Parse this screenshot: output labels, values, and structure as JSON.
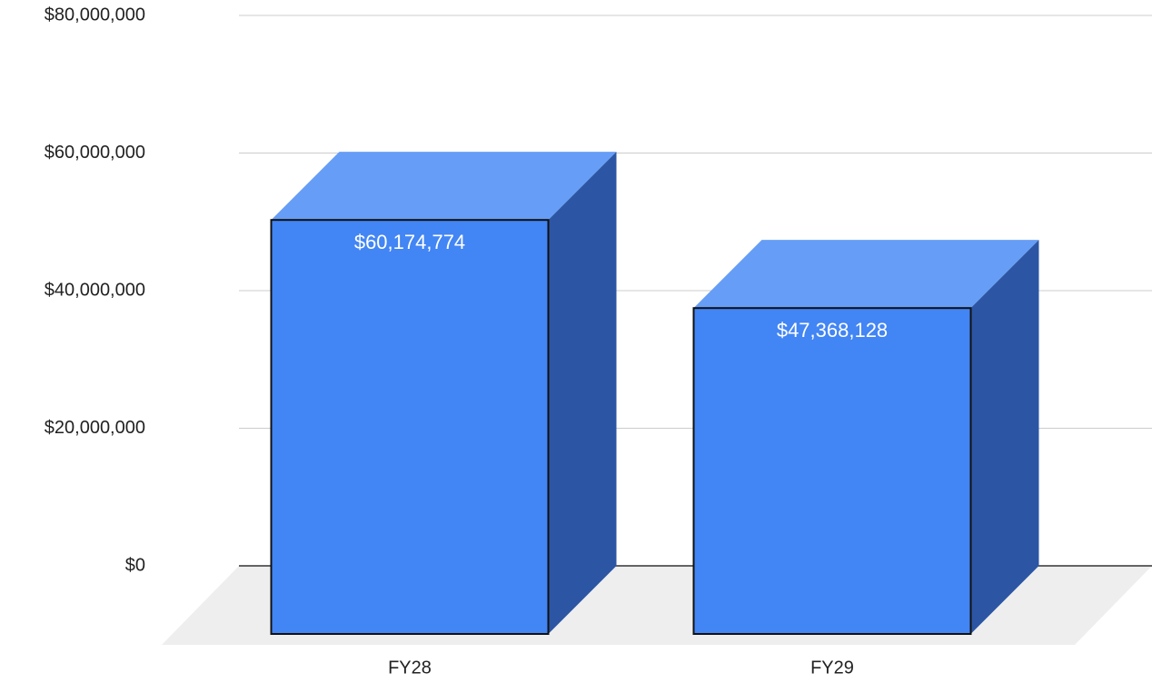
{
  "chart_data": {
    "type": "bar3d",
    "categories": [
      "FY28",
      "FY29"
    ],
    "values": [
      60174774,
      47368128
    ],
    "value_labels": [
      "$60,174,774",
      "$47,368,128"
    ],
    "color": "#4285f4",
    "ylim": [
      0,
      80000000
    ],
    "yticks": [
      {
        "value": 0,
        "label": "$0"
      },
      {
        "value": 20000000,
        "label": "$20,000,000"
      },
      {
        "value": 40000000,
        "label": "$40,000,000"
      },
      {
        "value": 60000000,
        "label": "$60,000,000"
      },
      {
        "value": 80000000,
        "label": "$80,000,000"
      }
    ],
    "grid": true
  }
}
